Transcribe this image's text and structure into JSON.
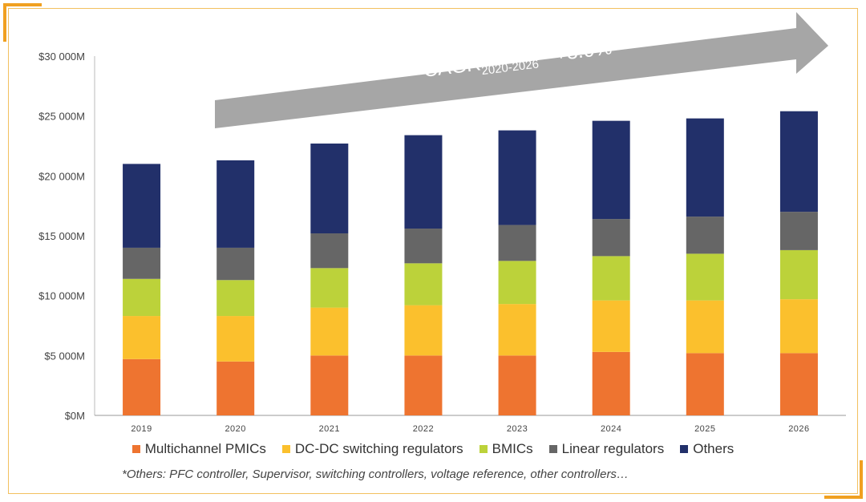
{
  "chart_data": {
    "type": "bar",
    "stacked": true,
    "categories": [
      "2019",
      "2020",
      "2021",
      "2022",
      "2023",
      "2024",
      "2025",
      "2026"
    ],
    "series": [
      {
        "name": "Multichannel PMICs",
        "color": "#ee7430",
        "values": [
          4700,
          4500,
          5000,
          5000,
          5000,
          5300,
          5200,
          5200
        ]
      },
      {
        "name": "DC-DC switching regulators",
        "color": "#fbc02d",
        "values": [
          3600,
          3800,
          4000,
          4200,
          4300,
          4300,
          4400,
          4500
        ]
      },
      {
        "name": "BMICs",
        "color": "#bcd23a",
        "values": [
          3100,
          3000,
          3300,
          3500,
          3600,
          3700,
          3900,
          4100
        ]
      },
      {
        "name": "Linear regulators",
        "color": "#666666",
        "values": [
          2600,
          2700,
          2900,
          2900,
          3000,
          3100,
          3100,
          3200
        ]
      },
      {
        "name": "Others",
        "color": "#22306a",
        "values": [
          7000,
          7300,
          7500,
          7800,
          7900,
          8200,
          8200,
          8400
        ]
      }
    ],
    "y_ticks": [
      "$0M",
      "$5 000M",
      "$10 000M",
      "$15 000M",
      "$20 000M",
      "$25 000M",
      "$30 000M"
    ],
    "ylim": [
      0,
      30000
    ],
    "ylabel": "",
    "xlabel": "",
    "annotation": {
      "text": "CAGR",
      "subscript": "2020-2026",
      "suffix": "= +3.0%"
    },
    "legend_position": "bottom"
  },
  "footnote": "*Others: PFC controller, Supervisor, switching controllers, voltage reference, other controllers…"
}
